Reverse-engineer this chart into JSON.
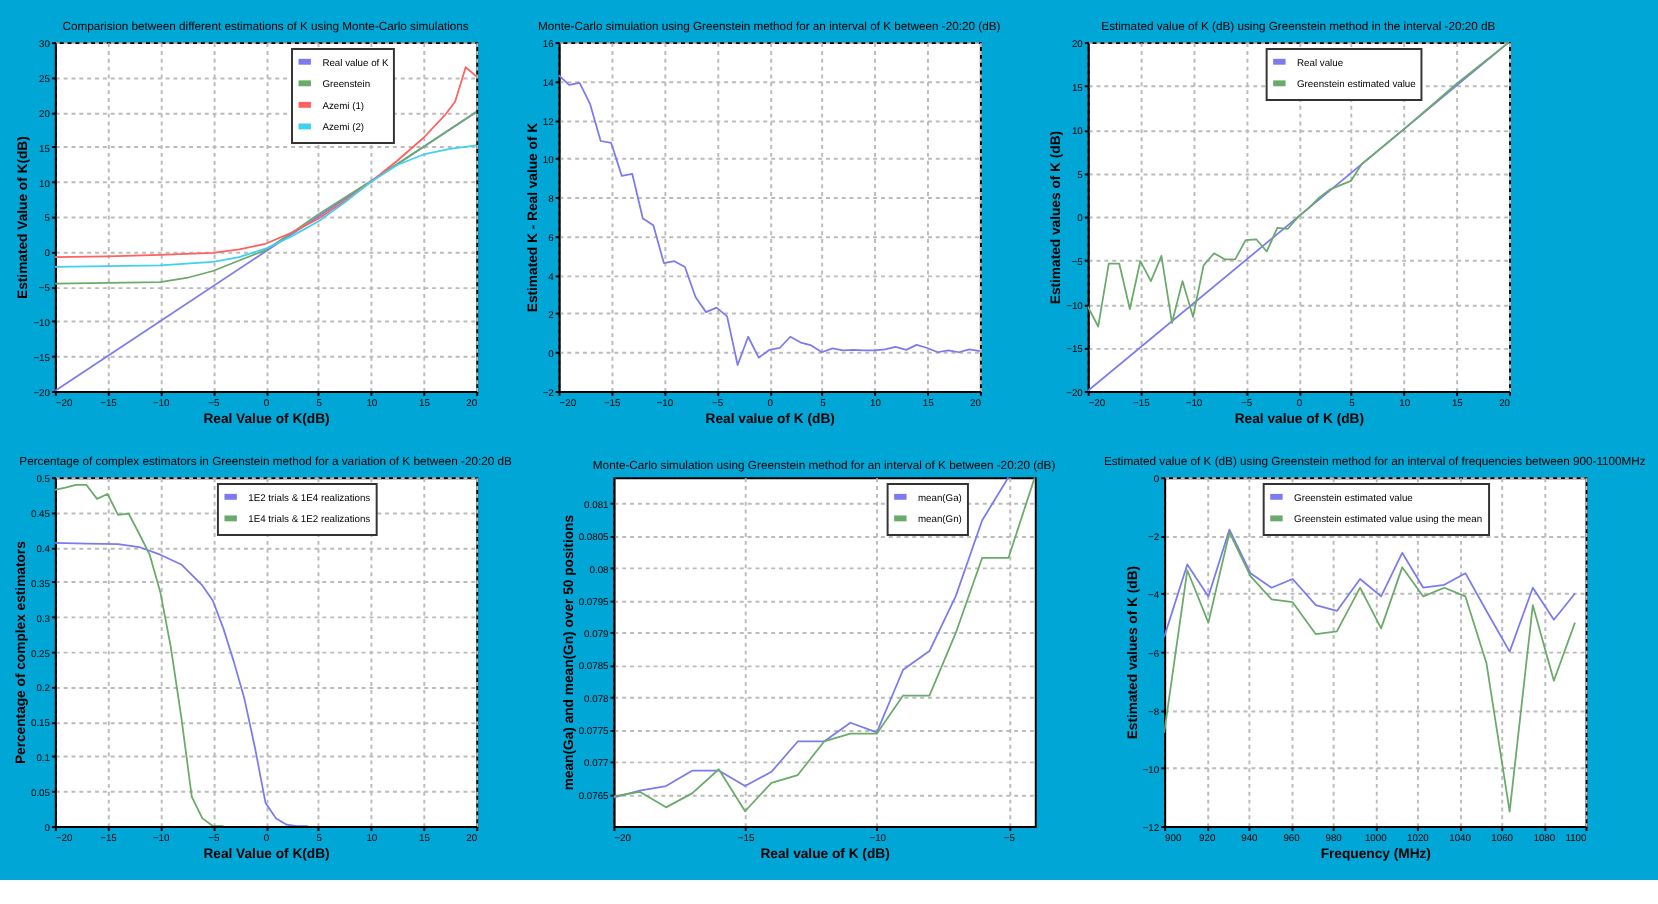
{
  "chart_data": [
    {
      "type": "line",
      "title": "Comparision  between different estimations of K using Monte-Carlo simulations",
      "xlabel": "Real Value of K(dB)",
      "ylabel": "Estimated Value of K(dB)",
      "xlim": [
        -20,
        20
      ],
      "ylim": [
        -20,
        30
      ],
      "xticks": [
        -20,
        -15,
        -10,
        -5,
        0,
        5,
        10,
        15,
        20
      ],
      "yticks": [
        -20,
        -15,
        -10,
        -5,
        0,
        5,
        10,
        15,
        20,
        25,
        30
      ],
      "grid": true,
      "legend": "top right",
      "series": [
        {
          "name": "Real value of K",
          "color": "#7b7bef",
          "x": [
            -20,
            20
          ],
          "values": [
            -20,
            20
          ]
        },
        {
          "name": "Greenstein",
          "color": "#6aaa6a",
          "x": [
            -20,
            -10,
            -7.5,
            -5,
            -2.5,
            0,
            2.5,
            5,
            10,
            15,
            20
          ],
          "values": [
            -4.6,
            -4.4,
            -3.8,
            -2.8,
            -1.3,
            0.2,
            2.7,
            5.3,
            10.1,
            15,
            20
          ]
        },
        {
          "name": "Azemi (1)",
          "color": "#ff6060",
          "x": [
            -20,
            -15,
            -10,
            -5,
            -2.5,
            0,
            2.5,
            5,
            7.5,
            10,
            12.5,
            15,
            17,
            18,
            19,
            20
          ],
          "values": [
            -0.8,
            -0.7,
            -0.5,
            -0.2,
            0.3,
            1.1,
            2.7,
            4.7,
            7.2,
            10,
            13,
            16.3,
            19.5,
            21.5,
            26.4,
            25.1
          ]
        },
        {
          "name": "Azemi (2)",
          "color": "#40d0f0",
          "x": [
            -20,
            -15,
            -10,
            -5,
            -2.5,
            0,
            2.5,
            5,
            7.5,
            10,
            12.5,
            15,
            17.5,
            20
          ],
          "values": [
            -2.2,
            -2.1,
            -2,
            -1.5,
            -0.8,
            0.4,
            2.2,
            4.3,
            7,
            10,
            12.4,
            13.9,
            14.7,
            15.2
          ]
        }
      ]
    },
    {
      "type": "line",
      "title": "Monte-Carlo simulation using Greenstein method for an interval of K between -20:20 (dB)",
      "xlabel": "Real value of K (dB)",
      "ylabel": "Estimated K - Real value of K",
      "xlim": [
        -20,
        20
      ],
      "ylim": [
        -2,
        16
      ],
      "xticks": [
        -20,
        -15,
        -10,
        -5,
        0,
        5,
        10,
        15,
        20
      ],
      "yticks": [
        -2,
        0,
        2,
        4,
        6,
        8,
        10,
        12,
        14,
        16
      ],
      "grid": true,
      "x": [
        -20,
        -19,
        -18,
        -17,
        -16,
        -15,
        -14,
        -13,
        -12,
        -11,
        -10,
        -9,
        -8,
        -7,
        -6,
        -5,
        -4,
        -3,
        -2,
        -1,
        0,
        1,
        2,
        3,
        4,
        5,
        6,
        7,
        8,
        9,
        10,
        11,
        12,
        13,
        14,
        15,
        16,
        17,
        18,
        19,
        20
      ],
      "series": [
        {
          "color": "#7b7bef",
          "values": [
            14.3,
            13.8,
            13.9,
            12.8,
            10.9,
            10.8,
            9.1,
            9.2,
            6.9,
            6.55,
            4.6,
            4.7,
            4.4,
            2.85,
            2.07,
            2.3,
            1.85,
            -0.66,
            0.8,
            -0.28,
            0.12,
            0.22,
            0.8,
            0.5,
            0.35,
            0,
            0.2,
            0.1,
            0.12,
            0.1,
            0.1,
            0.15,
            0.28,
            0.12,
            0.38,
            0.22,
            0,
            0.1,
            0,
            0.15,
            0.06
          ]
        }
      ]
    },
    {
      "type": "line",
      "title": "Estimated value of K (dB) using Greenstein method in the interval -20:20 dB",
      "xlabel": "Real value of K (dB)",
      "ylabel": "Estimated values of K (dB)",
      "xlim": [
        -20,
        20
      ],
      "ylim": [
        -20,
        20
      ],
      "xticks": [
        -20,
        -15,
        -10,
        -5,
        0,
        5,
        10,
        15,
        20
      ],
      "yticks": [
        -20,
        -15,
        -10,
        -5,
        0,
        5,
        10,
        15,
        20
      ],
      "grid": true,
      "legend": "top right",
      "series": [
        {
          "name": "Real value",
          "color": "#7b7bef",
          "x": [
            -20,
            20
          ],
          "values": [
            -20,
            20
          ]
        },
        {
          "name": "Greenstein estimated value",
          "color": "#6aaa6a",
          "x": [
            -20,
            -19,
            -18,
            -17,
            -16,
            -15,
            -14,
            -13,
            -12,
            -11,
            -10,
            -9,
            -8,
            -7,
            -6,
            -5,
            -4,
            -3,
            -2,
            -1,
            0,
            1,
            2,
            3,
            4,
            5,
            6,
            10,
            15,
            20
          ],
          "values": [
            -10.3,
            -12.6,
            -5.4,
            -5.4,
            -10.6,
            -5.1,
            -7.4,
            -4.5,
            -12.2,
            -7.4,
            -11.5,
            -5.6,
            -4.2,
            -4.9,
            -4.9,
            -2.7,
            -2.6,
            -4,
            -1.3,
            -1.4,
            0,
            1,
            2.2,
            3.1,
            3.6,
            4.1,
            6,
            10,
            15.2,
            20
          ]
        }
      ]
    },
    {
      "type": "line",
      "title": "Percentage of complex estimators in Greenstein method for a variation of K between -20:20 dB",
      "xlabel": "Real Value of K(dB)",
      "ylabel": "Percentage of complex estimators",
      "xlim": [
        -20,
        20
      ],
      "ylim": [
        0,
        0.5
      ],
      "xticks": [
        -20,
        -15,
        -10,
        -5,
        0,
        5,
        10,
        15,
        20
      ],
      "yticks": [
        0,
        0.05,
        0.1,
        0.15,
        0.2,
        0.25,
        0.3,
        0.35,
        0.4,
        0.45,
        0.5
      ],
      "grid": true,
      "legend": "top right",
      "series": [
        {
          "name": "1E2 trials & 1E4 realizations",
          "color": "#7b7bef",
          "x": [
            -20,
            -17,
            -14,
            -12,
            -10,
            -8,
            -6,
            -5,
            -4,
            -3,
            -2,
            -1,
            0,
            1,
            2,
            3,
            4
          ],
          "values": [
            0.406,
            0.405,
            0.404,
            0.4,
            0.389,
            0.375,
            0.345,
            0.323,
            0.283,
            0.235,
            0.182,
            0.112,
            0.033,
            0.011,
            0.002,
            0,
            0
          ]
        },
        {
          "name": "1E4 trials & 1E2 realizations",
          "color": "#6aaa6a",
          "x": [
            -20,
            -19,
            -18,
            -17,
            -16,
            -15,
            -14,
            -13,
            -12,
            -11,
            -10,
            -9,
            -8,
            -7,
            -6,
            -5,
            -4
          ],
          "values": [
            0.482,
            0.485,
            0.489,
            0.489,
            0.469,
            0.476,
            0.446,
            0.448,
            0.419,
            0.389,
            0.336,
            0.257,
            0.156,
            0.042,
            0.011,
            0,
            0
          ]
        }
      ]
    },
    {
      "type": "line",
      "title": "Monte-Carlo simulation using Greenstein method for an interval of K between -20:20 (dB)",
      "xlabel": "Real value of K (dB)",
      "ylabel": "mean(Ga) and mean(Gn) over 50 positions",
      "xlim": [
        -20,
        -4
      ],
      "ylim": [
        0.076,
        0.0814
      ],
      "xticks": [
        -20,
        -15,
        -10,
        -5
      ],
      "yticks": [
        0.0765,
        0.077,
        0.0775,
        0.078,
        0.0785,
        0.079,
        0.0795,
        0.08,
        0.0805,
        0.081
      ],
      "grid": true,
      "legend": "top right",
      "x": [
        -20,
        -19,
        -18,
        -17,
        -16,
        -15,
        -14,
        -13,
        -12,
        -11,
        -10,
        -9,
        -8,
        -7,
        -6,
        -5,
        -4
      ],
      "series": [
        {
          "name": "mean(Ga)",
          "color": "#7b7bef",
          "values": [
            0.07644,
            0.07655,
            0.07662,
            0.07686,
            0.07686,
            0.07662,
            0.07684,
            0.07731,
            0.07731,
            0.0776,
            0.07745,
            0.07842,
            0.07871,
            0.07956,
            0.08073,
            0.0814,
            null
          ]
        },
        {
          "name": "mean(Gn)",
          "color": "#6aaa6a",
          "values": [
            0.07646,
            0.07653,
            0.07629,
            0.07651,
            0.07688,
            0.07623,
            0.07667,
            0.07679,
            0.07731,
            0.07743,
            0.07743,
            0.07802,
            0.07802,
            0.07899,
            0.08015,
            0.08015,
            0.0814
          ]
        }
      ]
    },
    {
      "type": "line",
      "title": "Estimated value of K (dB) using Greenstein method for an interval of frequencies between 900-1100MHz",
      "xlabel": "Frequency (MHz)",
      "ylabel": "Estimated values of K (dB)",
      "xlim": [
        900,
        1100
      ],
      "ylim": [
        -12,
        0
      ],
      "xticks": [
        900,
        920,
        940,
        960,
        980,
        1000,
        1020,
        1040,
        1060,
        1080,
        1100
      ],
      "yticks": [
        -12,
        -10,
        -8,
        -6,
        -4,
        -2,
        0
      ],
      "grid": true,
      "legend": "top right",
      "x": [
        900,
        911,
        921,
        931,
        941,
        951,
        961,
        972,
        982,
        993,
        1003,
        1013,
        1023,
        1033,
        1043,
        1053,
        1064,
        1075,
        1085,
        1095
      ],
      "series": [
        {
          "name": "Greenstein estimated value",
          "color": "#7b7bef",
          "values": [
            -5.5,
            -3,
            -4.1,
            -1.8,
            -3.3,
            -3.8,
            -3.5,
            -4.4,
            -4.6,
            -3.5,
            -4.1,
            -2.6,
            -3.8,
            -3.7,
            -3.3,
            -4.6,
            -6,
            -3.8,
            -4.9,
            -4
          ]
        },
        {
          "name": "Greenstein estimated value using the mean",
          "color": "#6aaa6a",
          "values": [
            -8.8,
            -3.2,
            -5,
            -1.9,
            -3.4,
            -4.2,
            -4.3,
            -5.4,
            -5.3,
            -3.8,
            -5.2,
            -3.1,
            -4.1,
            -3.8,
            -4.1,
            -6.4,
            -11.5,
            -4.4,
            -7,
            -5
          ]
        }
      ]
    }
  ]
}
